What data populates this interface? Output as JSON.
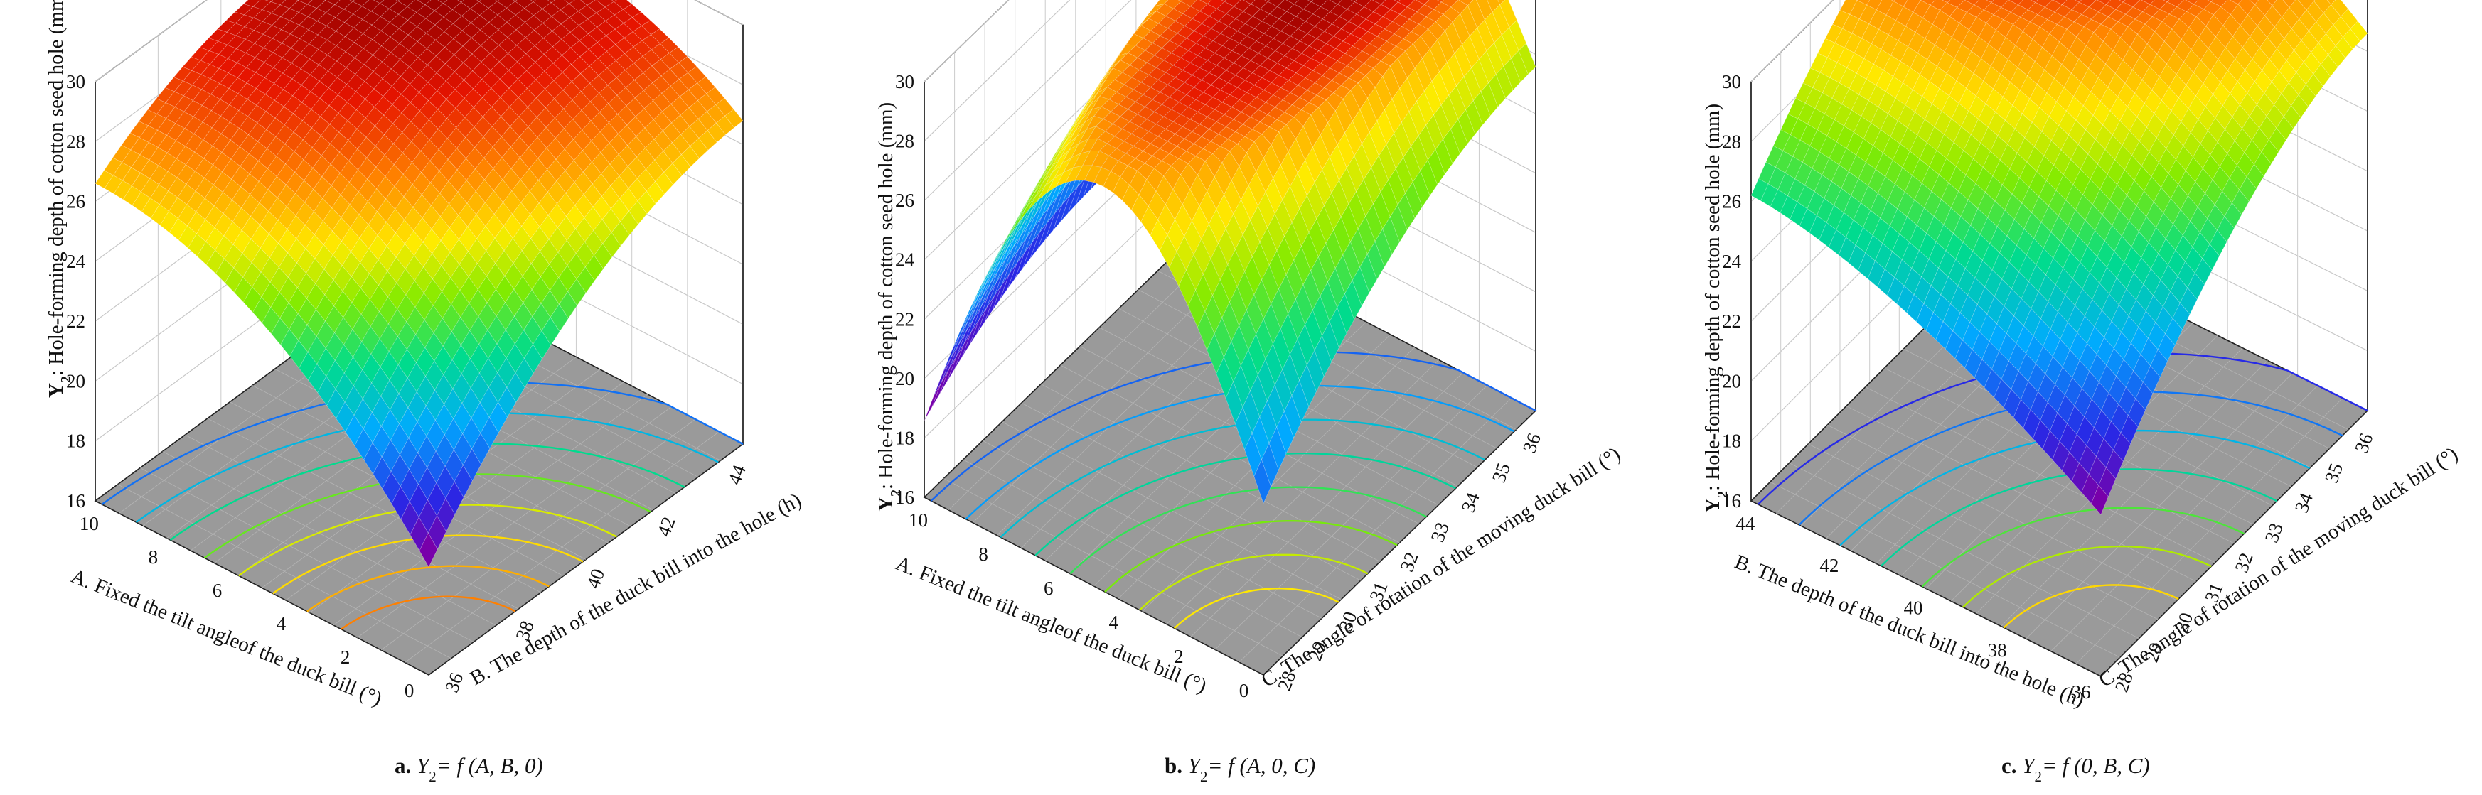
{
  "chart_data": [
    {
      "id": "a",
      "type": "surface",
      "caption": {
        "letter": "a.",
        "y": "Y",
        "sub": "2",
        "formula": "= f (A, B, 0)"
      },
      "zlabel": {
        "prefix": "Y",
        "sub": "2",
        "text": ": Hole-forming depth of cotton seed hole (mm)"
      },
      "xlabel": "A. Fixed the tilt angleof the duck bill (°)",
      "ylabel": "B. The depth of the duck bill into the hole (h)",
      "x_ticks": [
        "0",
        "2",
        "4",
        "6",
        "8",
        "10"
      ],
      "y_ticks": [
        "36",
        "38",
        "40",
        "42",
        "44"
      ],
      "z_ticks": [
        "16",
        "18",
        "20",
        "22",
        "24",
        "26",
        "28",
        "30"
      ],
      "xlim": [
        0,
        10
      ],
      "ylim": [
        35,
        45
      ],
      "zlim": [
        16,
        30
      ],
      "grid": true,
      "contour_levels": [
        22,
        23,
        24,
        25,
        26,
        26.5,
        27,
        27.5
      ]
    },
    {
      "id": "b",
      "type": "surface",
      "caption": {
        "letter": "b.",
        "y": "Y",
        "sub": "2",
        "formula": "= f (A, 0, C)"
      },
      "zlabel": {
        "prefix": "Y",
        "sub": "2",
        "text": ": Hole-forming depth of cotton seed hole (mm)"
      },
      "xlabel": "A. Fixed the tilt angleof the duck bill (°)",
      "ylabel": "C. The angle of rotation of the moving duck bill (°)",
      "x_ticks": [
        "0",
        "2",
        "4",
        "6",
        "8",
        "10"
      ],
      "y_ticks": [
        "28",
        "29",
        "30",
        "31",
        "32",
        "33",
        "34",
        "35",
        "36"
      ],
      "z_ticks": [
        "16",
        "18",
        "20",
        "22",
        "24",
        "26",
        "28",
        "30"
      ],
      "xlim": [
        0,
        10
      ],
      "ylim": [
        28,
        36
      ],
      "zlim": [
        16,
        30
      ],
      "grid": true,
      "contour_levels": [
        22,
        23,
        24,
        25,
        26,
        27,
        28,
        28.8
      ]
    },
    {
      "id": "c",
      "type": "surface",
      "caption": {
        "letter": "c.",
        "y": "Y",
        "sub": "2",
        "formula": "= f (0, B, C)"
      },
      "zlabel": {
        "prefix": "Y",
        "sub": "2",
        "text": ": Hole-forming depth of cotton seed hole (mm)"
      },
      "xlabel": "B. The depth of the duck bill into the hole (h)",
      "ylabel": "C. The angle of rotation of the moving duck bill (°)",
      "x_ticks": [
        "36",
        "38",
        "40",
        "42",
        "44"
      ],
      "y_ticks": [
        "28",
        "29",
        "30",
        "31",
        "32",
        "33",
        "34",
        "35",
        "36"
      ],
      "z_ticks": [
        "16",
        "18",
        "20",
        "22",
        "24",
        "26",
        "28",
        "30"
      ],
      "xlim": [
        35,
        45
      ],
      "ylim": [
        28,
        36
      ],
      "zlim": [
        16,
        30
      ],
      "grid": true,
      "contour_levels": [
        23,
        24,
        25,
        26,
        27,
        28,
        29
      ]
    }
  ]
}
